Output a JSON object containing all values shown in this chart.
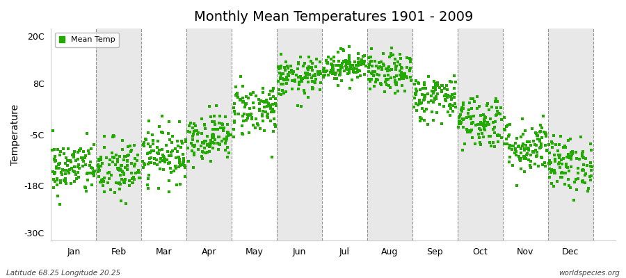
{
  "title": "Monthly Mean Temperatures 1901 - 2009",
  "ylabel": "Temperature",
  "yticks": [
    -30,
    -18,
    -5,
    8,
    20
  ],
  "ytick_labels": [
    "-30C",
    "-18C",
    "-5C",
    "8C",
    "20C"
  ],
  "ylim": [
    -32,
    22
  ],
  "xlim": [
    0.0,
    12.5
  ],
  "months": [
    "Jan",
    "Feb",
    "Mar",
    "Apr",
    "May",
    "Jun",
    "Jul",
    "Aug",
    "Sep",
    "Oct",
    "Nov",
    "Dec"
  ],
  "month_centers": [
    0.5,
    1.5,
    2.5,
    3.5,
    4.5,
    5.5,
    6.5,
    7.5,
    8.5,
    9.5,
    10.5,
    11.5
  ],
  "dashed_lines": [
    1.0,
    2.0,
    3.0,
    4.0,
    5.0,
    6.0,
    7.0,
    8.0,
    9.0,
    10.0,
    11.0,
    12.0
  ],
  "dot_color": "#22aa00",
  "fig_bg_color": "#ffffff",
  "plot_bg_color_odd": "#ffffff",
  "plot_bg_color_even": "#e8e8e8",
  "subtitle_left": "Latitude 68.25 Longitude 20.25",
  "subtitle_right": "worldspecies.org",
  "legend_label": "Mean Temp",
  "mean_temps": [
    -13.5,
    -14.0,
    -10.0,
    -5.5,
    1.5,
    9.5,
    12.5,
    10.5,
    4.5,
    -1.5,
    -8.0,
    -12.5
  ],
  "std_temps": [
    3.5,
    4.0,
    3.5,
    3.0,
    3.5,
    2.5,
    2.0,
    2.5,
    3.0,
    3.5,
    3.5,
    3.5
  ],
  "n_points": 109,
  "seed": 42
}
